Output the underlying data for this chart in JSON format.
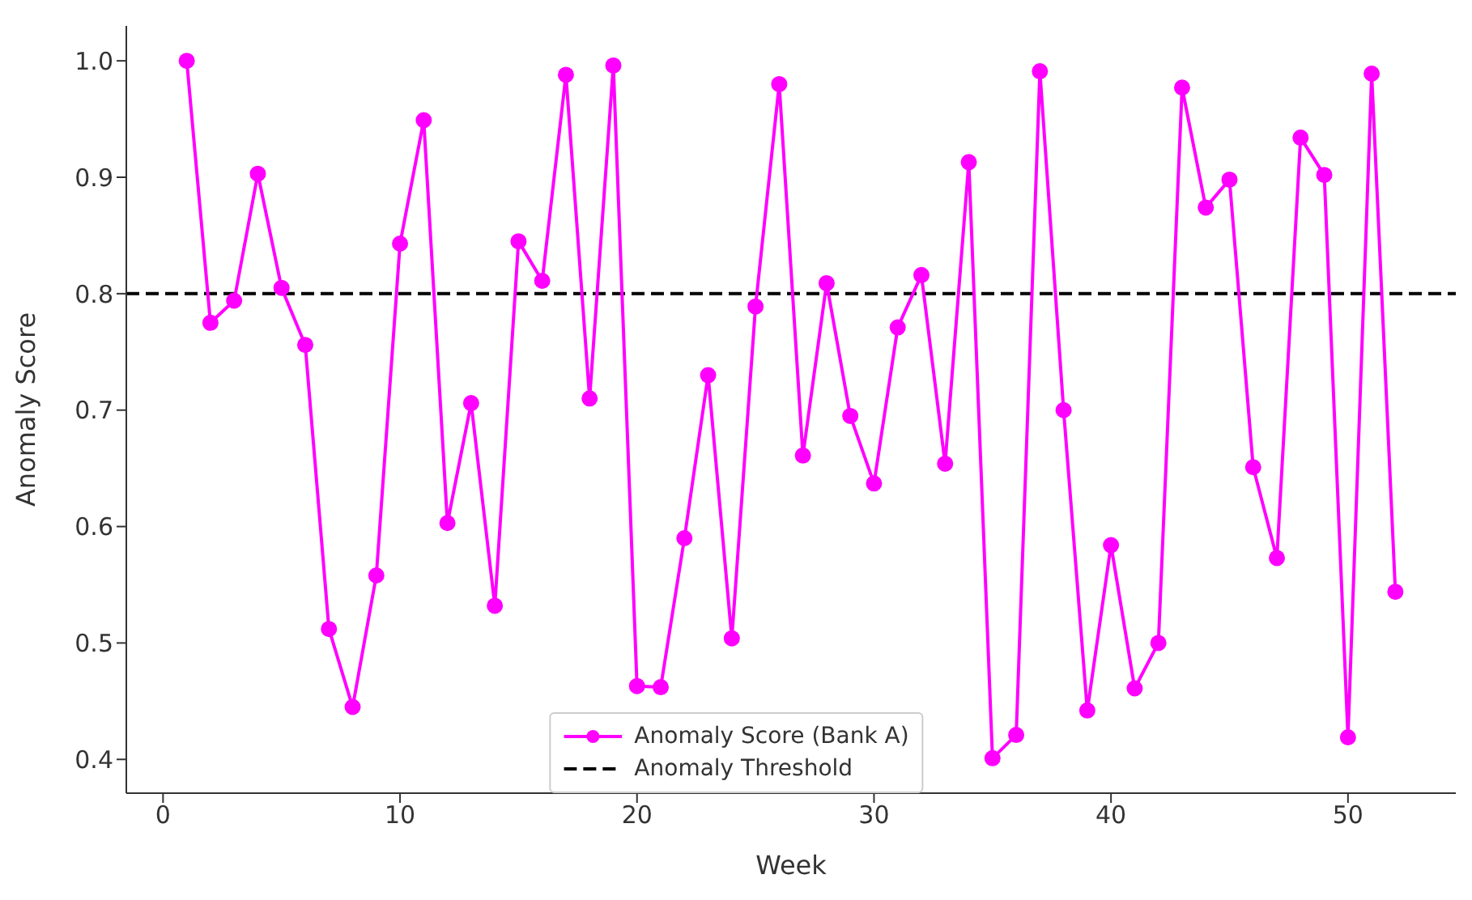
{
  "chart_data": {
    "type": "line",
    "xlabel": "Week",
    "ylabel": "Anomaly Score",
    "x": [
      1,
      2,
      3,
      4,
      5,
      6,
      7,
      8,
      9,
      10,
      11,
      12,
      13,
      14,
      15,
      16,
      17,
      18,
      19,
      20,
      21,
      22,
      23,
      24,
      25,
      26,
      27,
      28,
      29,
      30,
      31,
      32,
      33,
      34,
      35,
      36,
      37,
      38,
      39,
      40,
      41,
      42,
      43,
      44,
      45,
      46,
      47,
      48,
      49,
      50,
      51,
      52
    ],
    "series": [
      {
        "name": "Anomaly Score (Bank A)",
        "color": "#ff00ff",
        "values": [
          1.0,
          0.775,
          0.794,
          0.903,
          0.805,
          0.756,
          0.512,
          0.445,
          0.558,
          0.843,
          0.949,
          0.603,
          0.706,
          0.532,
          0.845,
          0.811,
          0.988,
          0.71,
          0.996,
          0.463,
          0.462,
          0.59,
          0.73,
          0.504,
          0.789,
          0.98,
          0.661,
          0.809,
          0.695,
          0.637,
          0.771,
          0.816,
          0.654,
          0.913,
          0.401,
          0.421,
          0.991,
          0.7,
          0.442,
          0.584,
          0.461,
          0.5,
          0.977,
          0.874,
          0.898,
          0.651,
          0.573,
          0.934,
          0.902,
          0.419,
          0.989,
          0.544
        ]
      }
    ],
    "ref_lines": [
      {
        "axis": "y",
        "value": 0.8,
        "label": "Anomaly Threshold",
        "color": "#000000",
        "line_style": "dashed"
      }
    ],
    "xlim": [
      -1.55,
      54.55
    ],
    "xticks": [
      0,
      10,
      20,
      30,
      40,
      50
    ],
    "ylim": [
      0.371,
      1.03
    ],
    "yticks": [
      0.4,
      0.5,
      0.6,
      0.7,
      0.8,
      0.9,
      {
        "value": 1,
        "label": "1.0"
      }
    ],
    "grid": false,
    "legend": "bottom",
    "marker": "circle",
    "line_style": "solid"
  }
}
